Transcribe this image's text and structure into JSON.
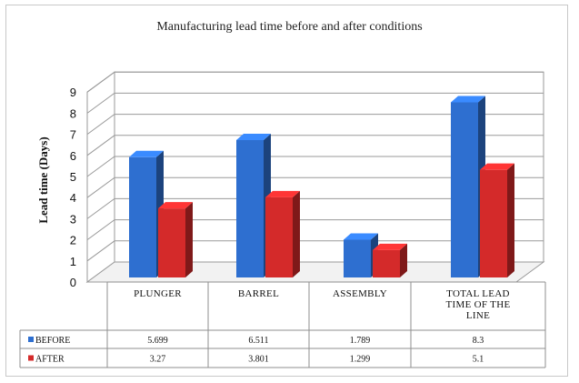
{
  "chart_data": {
    "type": "bar",
    "title": "Manufacturing lead time  before and after conditions",
    "ylabel": "Lead  time  (Days)",
    "ylim": [
      0,
      9
    ],
    "yticks": [
      "0",
      "1",
      "2",
      "3",
      "4",
      "5",
      "6",
      "7",
      "8",
      "9"
    ],
    "categories": [
      "PLUNGER",
      "BARREL",
      "ASSEMBLY",
      "TOTAL LEAD TIME OF THE LINE"
    ],
    "category_lines": [
      [
        "PLUNGER"
      ],
      [
        "BARREL"
      ],
      [
        "ASSEMBLY"
      ],
      [
        "TOTAL LEAD",
        "TIME OF THE",
        "LINE"
      ]
    ],
    "series": [
      {
        "name": "BEFORE",
        "values": [
          5.699,
          6.511,
          1.789,
          8.3
        ],
        "labels": [
          "5.699",
          "6.511",
          "1.789",
          "8.3"
        ],
        "color": "#2e6fd0"
      },
      {
        "name": "AFTER",
        "values": [
          3.27,
          3.801,
          1.299,
          5.1
        ],
        "labels": [
          "3.27",
          "3.801",
          "1.299",
          "5.1"
        ],
        "color": "#d42a2a"
      }
    ],
    "grid": true,
    "legend": "data-table"
  }
}
